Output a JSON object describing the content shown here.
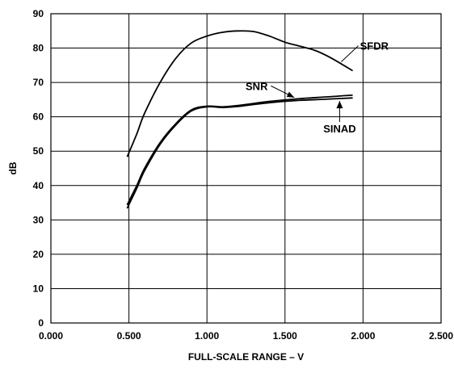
{
  "chart_data": {
    "type": "line",
    "title": "",
    "xlabel": "FULL-SCALE RANGE – V",
    "ylabel": "dB",
    "xlim": [
      0.0,
      2.5
    ],
    "ylim": [
      0,
      90
    ],
    "xticks": [
      "0.000",
      "0.500",
      "1.000",
      "1.500",
      "2.000",
      "2.500"
    ],
    "yticks": [
      "0",
      "10",
      "20",
      "30",
      "40",
      "50",
      "60",
      "70",
      "80",
      "90"
    ],
    "grid": true,
    "legend": "none",
    "series": [
      {
        "name": "SFDR",
        "x": [
          0.49,
          0.55,
          0.6,
          0.7,
          0.8,
          0.9,
          1.0,
          1.1,
          1.2,
          1.3,
          1.4,
          1.5,
          1.6,
          1.7,
          1.8,
          1.93
        ],
        "y": [
          48.5,
          55,
          61,
          70,
          77,
          81.5,
          83.5,
          84.6,
          85.0,
          84.8,
          83.5,
          81.7,
          80.5,
          79.2,
          77.0,
          73.5
        ]
      },
      {
        "name": "SNR",
        "x": [
          0.49,
          0.55,
          0.6,
          0.7,
          0.8,
          0.9,
          1.0,
          1.1,
          1.2,
          1.3,
          1.4,
          1.5,
          1.6,
          1.7,
          1.8,
          1.93
        ],
        "y": [
          34.5,
          40,
          45,
          52.5,
          58,
          62,
          63.1,
          62.9,
          63.3,
          63.9,
          64.5,
          64.9,
          65.3,
          65.6,
          65.9,
          66.3
        ]
      },
      {
        "name": "SINAD",
        "x": [
          0.49,
          0.55,
          0.6,
          0.7,
          0.8,
          0.9,
          1.0,
          1.1,
          1.2,
          1.3,
          1.4,
          1.5,
          1.6,
          1.7,
          1.8,
          1.93
        ],
        "y": [
          33.5,
          39.2,
          44.3,
          52.0,
          57.6,
          61.7,
          62.9,
          62.7,
          63.0,
          63.6,
          64.1,
          64.5,
          64.8,
          65.0,
          65.2,
          65.5
        ]
      }
    ],
    "annotations": [
      {
        "text": "SFDR",
        "points_to": "SFDR"
      },
      {
        "text": "SNR",
        "points_to": "SNR"
      },
      {
        "text": "SINAD",
        "points_to": "SINAD"
      }
    ]
  }
}
